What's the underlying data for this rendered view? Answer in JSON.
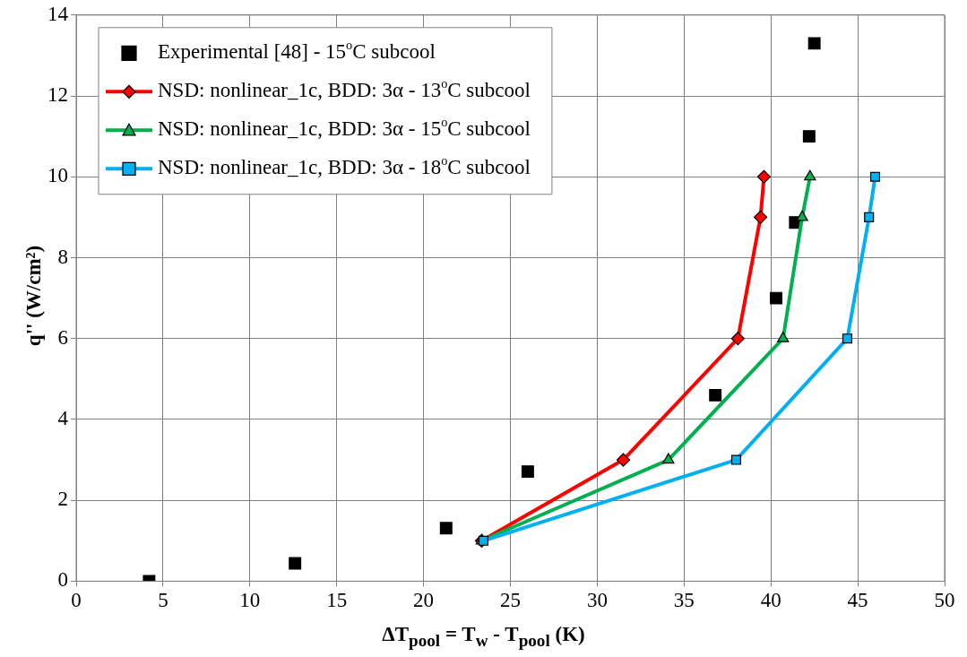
{
  "chart_data": {
    "type": "line",
    "xlabel": "ΔT$_{pool}$ = T$_{w}$ - T$_{pool}$ (K)",
    "ylabel": "q'' (W/cm²)",
    "xlim": [
      0,
      50
    ],
    "xticks": [
      0,
      5,
      10,
      15,
      20,
      25,
      30,
      35,
      40,
      45,
      50
    ],
    "ylim": [
      0,
      14
    ],
    "yticks": [
      0,
      2,
      4,
      6,
      8,
      10,
      12,
      14
    ],
    "grid": true,
    "legend": "top left",
    "series": [
      {
        "name": "Experimental [48] - 15$^{o}$C subcool",
        "type": "scatter",
        "marker": "square",
        "color": "#000000",
        "x": [
          4.2,
          12.6,
          21.3,
          26.0,
          36.8,
          40.3,
          41.4,
          42.2,
          42.5
        ],
        "values": [
          0,
          0.44,
          1.31,
          2.71,
          4.6,
          7.0,
          8.87,
          11.0,
          13.3
        ]
      },
      {
        "name": "NSD: nonlinear_1c, BDD: 3α - 13$^{o}$C subcool",
        "marker": "diamond",
        "color": "#ff0000",
        "x": [
          23.35,
          31.5,
          38.1,
          39.4,
          39.6
        ],
        "values": [
          1,
          3,
          6,
          9,
          10
        ]
      },
      {
        "name": "NSD: nonlinear_1c, BDD: 3α - 15$^{o}$C subcool",
        "marker": "triangle",
        "color": "#00b050",
        "x": [
          23.35,
          34.1,
          40.7,
          41.8,
          42.25
        ],
        "values": [
          1,
          3,
          6,
          9,
          10
        ]
      },
      {
        "name": "NSD: nonlinear_1c, BDD: 3α - 18$^{o}$C subcool",
        "marker": "square",
        "color": "#00b0f0",
        "x": [
          23.45,
          38.0,
          44.4,
          45.65,
          46.0
        ],
        "values": [
          1,
          3,
          6,
          9,
          10
        ]
      }
    ]
  }
}
